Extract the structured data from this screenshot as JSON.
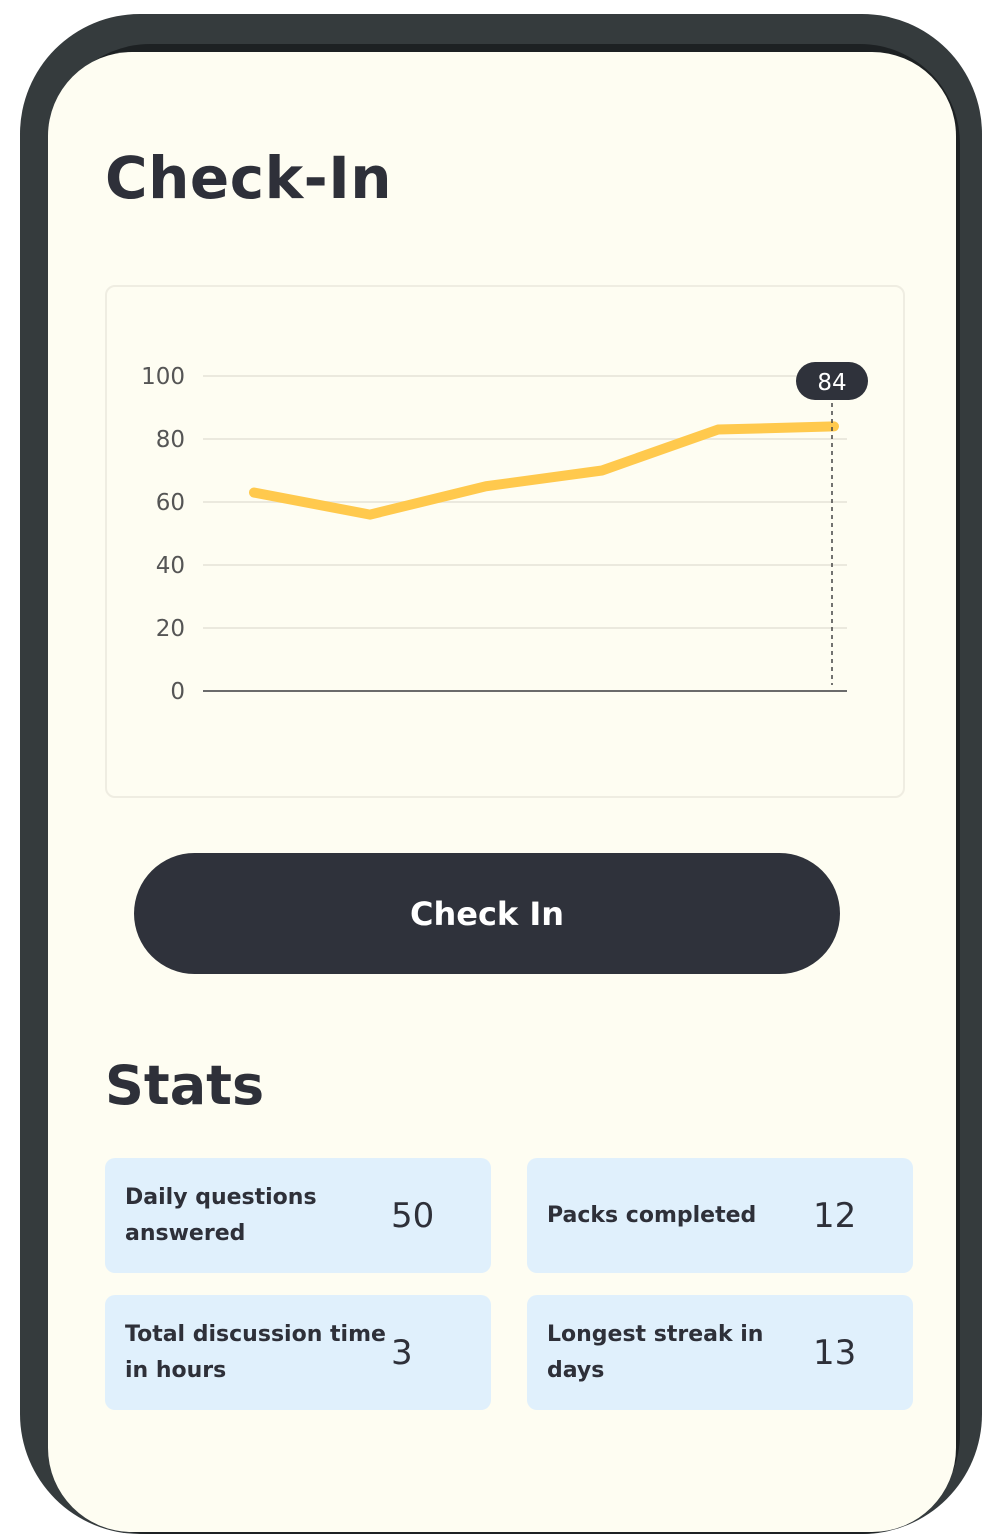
{
  "header": {
    "title": "Check-In"
  },
  "chart_data": {
    "type": "line",
    "x": [
      1,
      2,
      3,
      4,
      5,
      6
    ],
    "values": [
      63,
      56,
      65,
      70,
      83,
      84
    ],
    "ylim": [
      0,
      100
    ],
    "yticks": [
      "0",
      "20",
      "40",
      "60",
      "80",
      "100"
    ],
    "grid": true,
    "highlight": {
      "label": "84"
    },
    "line_color": "#ffc94d"
  },
  "checkin_button": {
    "label": "Check In"
  },
  "stats": {
    "title": "Stats",
    "items": [
      {
        "label": "Daily questions answered",
        "value": "50"
      },
      {
        "label": "Packs completed",
        "value": "12"
      },
      {
        "label": "Total discussion time in hours",
        "value": "3"
      },
      {
        "label": "Longest streak in days",
        "value": "13"
      }
    ]
  },
  "colors": {
    "background": "#fefdf2",
    "button": "#2f323b",
    "stat_card": "#e0f0fc",
    "accent": "#ffc94d"
  }
}
